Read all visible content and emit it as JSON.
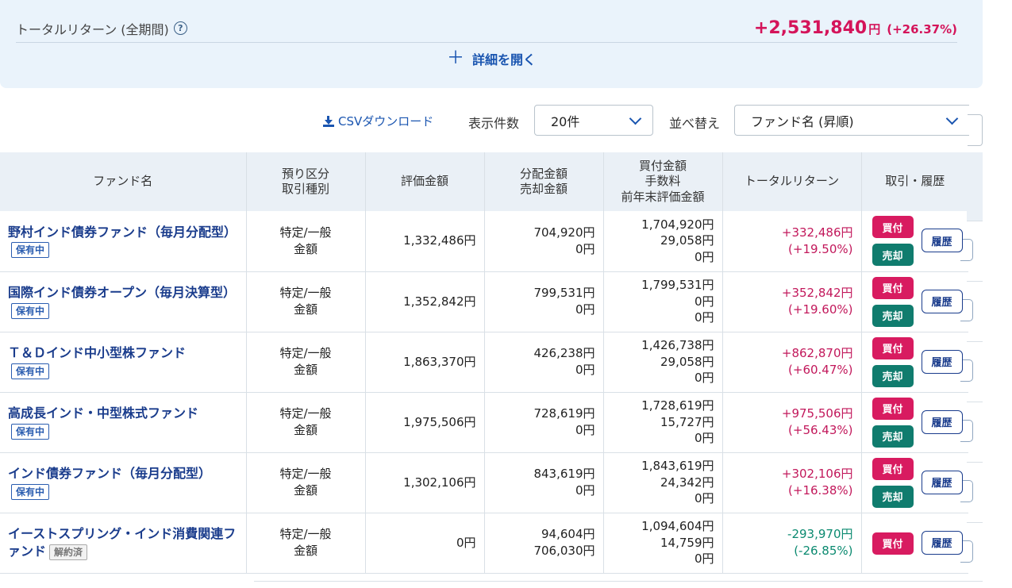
{
  "summary": {
    "label": "トータルリターン (全期間)",
    "help": "?",
    "amount": "+2,531,840",
    "unit": "円",
    "percent": "(+26.37%)",
    "detail_toggle": "詳細を開く"
  },
  "toolbar": {
    "csv_label": "CSVダウンロード",
    "count_label": "表示件数",
    "count_value": "20件",
    "sort_label": "並べ替え",
    "sort_value": "ファンド名 (昇順)"
  },
  "table": {
    "headers": {
      "fund": "ファンド名",
      "account1": "預り区分",
      "account2": "取引種別",
      "value": "評価金額",
      "dist1": "分配金額",
      "dist2": "売却金額",
      "buy1": "買付金額",
      "buy2": "手数料",
      "buy3": "前年末評価金額",
      "return": "トータルリターン",
      "actions": "取引・履歴"
    },
    "buttons": {
      "buy": "買付",
      "sell": "売却",
      "history": "履歴"
    },
    "rows": [
      {
        "fund": "野村インド債券ファンド（毎月分配型）",
        "badge": "保有中",
        "acc1": "特定/一般",
        "acc2": "金額",
        "value": "1,332,486円",
        "dist": "704,920円",
        "sell": "0円",
        "buy": "1,704,920円",
        "fee": "29,058円",
        "prev": "0円",
        "ret": "+332,486円",
        "retpct": "(+19.50%)"
      },
      {
        "fund": "国際インド債券オープン（毎月決算型）",
        "badge": "保有中",
        "acc1": "特定/一般",
        "acc2": "金額",
        "value": "1,352,842円",
        "dist": "799,531円",
        "sell": "0円",
        "buy": "1,799,531円",
        "fee": "0円",
        "prev": "0円",
        "ret": "+352,842円",
        "retpct": "(+19.60%)"
      },
      {
        "fund": "Ｔ＆Ｄインド中小型株ファンド",
        "badge": "保有中",
        "acc1": "特定/一般",
        "acc2": "金額",
        "value": "1,863,370円",
        "dist": "426,238円",
        "sell": "0円",
        "buy": "1,426,738円",
        "fee": "29,058円",
        "prev": "0円",
        "ret": "+862,870円",
        "retpct": "(+60.47%)"
      },
      {
        "fund": "高成長インド・中型株式ファンド",
        "badge": "保有中",
        "acc1": "特定/一般",
        "acc2": "金額",
        "value": "1,975,506円",
        "dist": "728,619円",
        "sell": "0円",
        "buy": "1,728,619円",
        "fee": "15,727円",
        "prev": "0円",
        "ret": "+975,506円",
        "retpct": "(+56.43%)"
      },
      {
        "fund": "インド債券ファンド（毎月分配型）",
        "badge": "保有中",
        "acc1": "特定/一般",
        "acc2": "金額",
        "value": "1,302,106円",
        "dist": "843,619円",
        "sell": "0円",
        "buy": "1,843,619円",
        "fee": "24,342円",
        "prev": "0円",
        "ret": "+302,106円",
        "retpct": "(+16.38%)"
      },
      {
        "fund": "イーストスプリング・インド消費関連ファンド",
        "badge": "解約済",
        "acc1": "特定/一般",
        "acc2": "金額",
        "value": "0円",
        "dist": "94,604円",
        "sell": "706,030円",
        "buy": "1,094,604円",
        "fee": "14,759円",
        "prev": "0円",
        "ret": "-293,970円",
        "retpct": "(-26.85%)"
      }
    ]
  }
}
